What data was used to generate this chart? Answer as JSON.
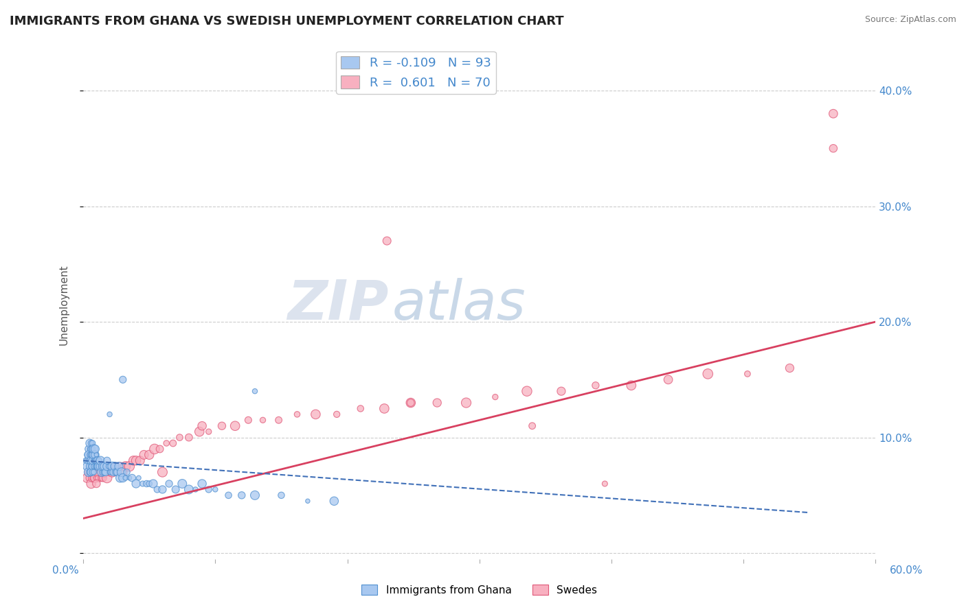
{
  "title": "IMMIGRANTS FROM GHANA VS SWEDISH UNEMPLOYMENT CORRELATION CHART",
  "source": "Source: ZipAtlas.com",
  "ylabel": "Unemployment",
  "xlim": [
    0.0,
    0.6
  ],
  "ylim": [
    -0.005,
    0.435
  ],
  "blue_color": "#A8C8F0",
  "blue_edge_color": "#5090D0",
  "pink_color": "#F8B0C0",
  "pink_edge_color": "#E05878",
  "blue_trend_color": "#4070B8",
  "pink_trend_color": "#D84060",
  "R_blue": -0.109,
  "N_blue": 93,
  "R_pink": 0.601,
  "N_pink": 70,
  "watermark_zip": "ZIP",
  "watermark_atlas": "atlas",
  "background_color": "#FFFFFF",
  "grid_color": "#CCCCCC",
  "blue_x": [
    0.002,
    0.003,
    0.003,
    0.004,
    0.004,
    0.004,
    0.004,
    0.005,
    0.005,
    0.005,
    0.005,
    0.005,
    0.005,
    0.006,
    0.006,
    0.006,
    0.006,
    0.006,
    0.006,
    0.007,
    0.007,
    0.007,
    0.007,
    0.007,
    0.007,
    0.008,
    0.008,
    0.008,
    0.008,
    0.008,
    0.009,
    0.009,
    0.009,
    0.009,
    0.01,
    0.01,
    0.01,
    0.011,
    0.011,
    0.012,
    0.012,
    0.013,
    0.013,
    0.014,
    0.014,
    0.015,
    0.015,
    0.016,
    0.016,
    0.017,
    0.018,
    0.018,
    0.019,
    0.02,
    0.02,
    0.021,
    0.022,
    0.023,
    0.024,
    0.025,
    0.026,
    0.027,
    0.028,
    0.029,
    0.03,
    0.032,
    0.033,
    0.035,
    0.037,
    0.04,
    0.042,
    0.045,
    0.048,
    0.05,
    0.053,
    0.056,
    0.06,
    0.065,
    0.07,
    0.075,
    0.08,
    0.085,
    0.09,
    0.095,
    0.1,
    0.11,
    0.12,
    0.13,
    0.15,
    0.17,
    0.19,
    0.13,
    0.03
  ],
  "blue_y": [
    0.08,
    0.075,
    0.085,
    0.07,
    0.09,
    0.08,
    0.085,
    0.075,
    0.08,
    0.085,
    0.09,
    0.095,
    0.07,
    0.075,
    0.08,
    0.085,
    0.09,
    0.095,
    0.07,
    0.075,
    0.08,
    0.085,
    0.09,
    0.095,
    0.07,
    0.075,
    0.08,
    0.085,
    0.09,
    0.07,
    0.075,
    0.08,
    0.085,
    0.09,
    0.075,
    0.08,
    0.085,
    0.075,
    0.08,
    0.075,
    0.08,
    0.075,
    0.08,
    0.07,
    0.075,
    0.07,
    0.075,
    0.07,
    0.075,
    0.07,
    0.075,
    0.08,
    0.075,
    0.07,
    0.12,
    0.07,
    0.075,
    0.07,
    0.075,
    0.07,
    0.07,
    0.075,
    0.065,
    0.07,
    0.065,
    0.065,
    0.07,
    0.065,
    0.065,
    0.06,
    0.065,
    0.06,
    0.06,
    0.06,
    0.06,
    0.055,
    0.055,
    0.06,
    0.055,
    0.06,
    0.055,
    0.055,
    0.06,
    0.055,
    0.055,
    0.05,
    0.05,
    0.05,
    0.05,
    0.045,
    0.045,
    0.14,
    0.15
  ],
  "pink_x": [
    0.003,
    0.004,
    0.005,
    0.006,
    0.006,
    0.007,
    0.008,
    0.008,
    0.009,
    0.01,
    0.011,
    0.012,
    0.013,
    0.014,
    0.015,
    0.016,
    0.018,
    0.02,
    0.022,
    0.024,
    0.026,
    0.028,
    0.03,
    0.032,
    0.035,
    0.038,
    0.04,
    0.043,
    0.046,
    0.05,
    0.054,
    0.058,
    0.063,
    0.068,
    0.073,
    0.08,
    0.088,
    0.095,
    0.105,
    0.115,
    0.125,
    0.136,
    0.148,
    0.162,
    0.176,
    0.192,
    0.21,
    0.228,
    0.248,
    0.268,
    0.29,
    0.312,
    0.336,
    0.362,
    0.388,
    0.415,
    0.443,
    0.473,
    0.503,
    0.535,
    0.568,
    0.568,
    0.34,
    0.395,
    0.23,
    0.248,
    0.06,
    0.01,
    0.01,
    0.09
  ],
  "pink_y": [
    0.065,
    0.07,
    0.065,
    0.06,
    0.07,
    0.065,
    0.065,
    0.07,
    0.065,
    0.065,
    0.07,
    0.065,
    0.07,
    0.065,
    0.065,
    0.07,
    0.065,
    0.07,
    0.07,
    0.075,
    0.07,
    0.075,
    0.07,
    0.075,
    0.075,
    0.08,
    0.08,
    0.08,
    0.085,
    0.085,
    0.09,
    0.09,
    0.095,
    0.095,
    0.1,
    0.1,
    0.105,
    0.105,
    0.11,
    0.11,
    0.115,
    0.115,
    0.115,
    0.12,
    0.12,
    0.12,
    0.125,
    0.125,
    0.13,
    0.13,
    0.13,
    0.135,
    0.14,
    0.14,
    0.145,
    0.145,
    0.15,
    0.155,
    0.155,
    0.16,
    0.35,
    0.38,
    0.11,
    0.06,
    0.27,
    0.13,
    0.07,
    0.06,
    0.07,
    0.11
  ],
  "pink_trend_x0": 0.0,
  "pink_trend_x1": 0.6,
  "pink_trend_y0": 0.03,
  "pink_trend_y1": 0.2,
  "blue_trend_x0": 0.0,
  "blue_trend_x1": 0.55,
  "blue_trend_y0": 0.08,
  "blue_trend_y1": 0.035
}
